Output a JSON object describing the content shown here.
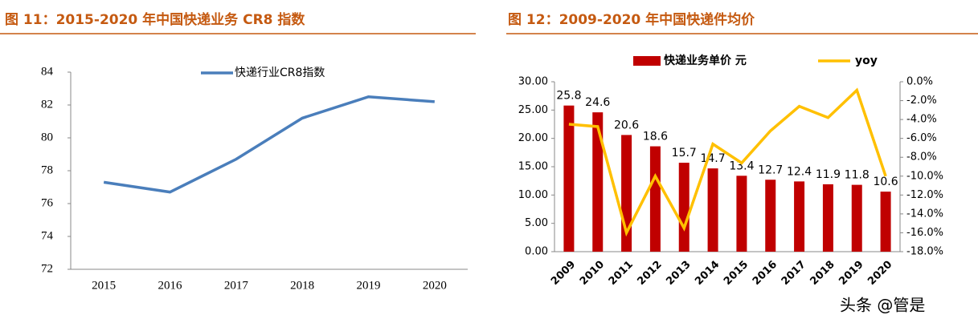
{
  "chart_data": [
    {
      "type": "line",
      "title": "图 11：2015-2020 年中国快递业务 CR8 指数",
      "categories": [
        "2015",
        "2016",
        "2017",
        "2018",
        "2019",
        "2020"
      ],
      "series": [
        {
          "name": "快递行业CR8指数",
          "color": "#4a7ebb",
          "values": [
            77.3,
            76.7,
            78.7,
            81.2,
            82.5,
            82.2
          ]
        }
      ],
      "ylim": [
        72,
        84
      ],
      "yticks": [
        72,
        74,
        76,
        78,
        80,
        82,
        84
      ],
      "grid": false,
      "legend": "top"
    },
    {
      "type": "bar",
      "title": "图 12：2009-2020 年中国快递件均价",
      "categories": [
        "2009",
        "2010",
        "2011",
        "2012",
        "2013",
        "2014",
        "2015",
        "2016",
        "2017",
        "2018",
        "2019",
        "2020"
      ],
      "series": [
        {
          "name": "快递业务单价 元",
          "color": "#c00000",
          "type": "bar",
          "values": [
            25.8,
            24.6,
            20.6,
            18.6,
            15.7,
            14.7,
            13.4,
            12.7,
            12.4,
            11.9,
            11.8,
            10.6
          ]
        },
        {
          "name": "yoy",
          "color": "#ffc000",
          "type": "line",
          "axis": "y2",
          "values": [
            -4.5,
            -4.75,
            -16.0,
            -10.0,
            -15.5,
            -6.6,
            -8.6,
            -5.2,
            -2.6,
            -3.8,
            -0.9,
            -10.0
          ]
        }
      ],
      "ylim": [
        0,
        30
      ],
      "yticks": [
        {
          "value": 0,
          "label": "0.00"
        },
        {
          "value": 5,
          "label": "5.00"
        },
        {
          "value": 10,
          "label": "10.00"
        },
        {
          "value": 15,
          "label": "15.00"
        },
        {
          "value": 20,
          "label": "20.00"
        },
        {
          "value": 25,
          "label": "25.00"
        },
        {
          "value": 30,
          "label": "30.00"
        }
      ],
      "y2lim": [
        -18,
        0
      ],
      "y2ticks": [
        {
          "value": 0,
          "label": "0.0%"
        },
        {
          "value": -2,
          "label": "-2.0%"
        },
        {
          "value": -4,
          "label": "-4.0%"
        },
        {
          "value": -6,
          "label": "-6.0%"
        },
        {
          "value": -8,
          "label": "-8.0%"
        },
        {
          "value": -10,
          "label": "-10.0%"
        },
        {
          "value": -12,
          "label": "-12.0%"
        },
        {
          "value": -14,
          "label": "-14.0%"
        },
        {
          "value": -16,
          "label": "-16.0%"
        },
        {
          "value": -18,
          "label": "-18.0%"
        }
      ],
      "grid": false,
      "legend": "top"
    }
  ],
  "watermark": "头条 @管是"
}
